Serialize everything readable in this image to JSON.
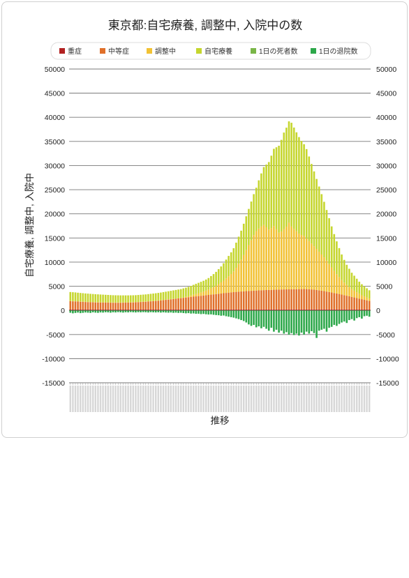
{
  "chart_data": {
    "type": "bar",
    "stacked": true,
    "title": "東京都:自宅療養, 調整中, 入院中の数",
    "xlabel": "推移",
    "ylabel": "自宅療養, 調整中, 入院中",
    "ylim": [
      -15000,
      50000
    ],
    "yticks": [
      50000,
      45000,
      40000,
      35000,
      30000,
      25000,
      20000,
      15000,
      10000,
      5000,
      0,
      -5000,
      -10000,
      -15000
    ],
    "grid": true,
    "legend_position": "top",
    "series": [
      {
        "name": "重症",
        "color": "#b22222",
        "values": [
          180,
          180,
          180,
          180,
          180,
          180,
          180,
          180,
          180,
          180,
          180,
          180,
          180,
          180,
          180,
          180,
          180,
          180,
          180,
          180,
          180,
          180,
          180,
          180,
          180,
          180,
          180,
          180,
          180,
          180,
          180,
          180,
          180,
          180,
          180,
          180,
          180,
          180,
          180,
          180,
          180,
          180,
          180,
          180,
          180,
          180,
          180,
          180,
          180,
          180,
          180,
          180,
          180,
          180,
          180,
          180,
          180,
          180,
          180,
          180,
          180,
          180,
          180,
          180,
          180,
          180,
          180,
          180,
          180,
          180,
          180,
          180,
          180,
          180,
          180,
          180,
          180,
          180,
          180,
          180,
          180,
          180,
          180,
          180,
          180,
          180,
          180,
          180,
          180,
          180,
          180,
          180,
          180,
          180,
          180,
          180,
          180,
          180,
          180,
          180,
          180,
          180,
          180,
          180,
          180,
          180,
          180,
          180,
          180,
          180,
          180,
          180,
          180,
          180,
          180,
          180,
          180,
          180,
          180,
          180
        ]
      },
      {
        "name": "中等症",
        "color": "#e0702a",
        "values": [
          1720,
          1700,
          1680,
          1650,
          1620,
          1590,
          1560,
          1540,
          1520,
          1500,
          1480,
          1470,
          1460,
          1450,
          1440,
          1430,
          1420,
          1410,
          1410,
          1410,
          1410,
          1420,
          1430,
          1440,
          1460,
          1480,
          1500,
          1530,
          1560,
          1590,
          1620,
          1660,
          1700,
          1740,
          1780,
          1830,
          1880,
          1940,
          2000,
          2060,
          2120,
          2180,
          2240,
          2300,
          2360,
          2420,
          2480,
          2540,
          2600,
          2660,
          2720,
          2780,
          2840,
          2900,
          2960,
          3020,
          3080,
          3140,
          3200,
          3260,
          3320,
          3380,
          3440,
          3500,
          3550,
          3600,
          3650,
          3690,
          3730,
          3770,
          3810,
          3840,
          3870,
          3900,
          3930,
          3960,
          3990,
          4010,
          4030,
          4050,
          4070,
          4090,
          4110,
          4130,
          4150,
          4160,
          4170,
          4180,
          4190,
          4200,
          4210,
          4220,
          4230,
          4240,
          4230,
          4200,
          4160,
          4110,
          4050,
          3980,
          3900,
          3810,
          3720,
          3620,
          3520,
          3420,
          3320,
          3220,
          3100,
          2980,
          2860,
          2740,
          2620,
          2500,
          2380,
          2260,
          2140,
          2020,
          1900,
          1780
        ]
      },
      {
        "name": "調整中",
        "color": "#f2c234",
        "values": [
          50,
          50,
          50,
          50,
          50,
          50,
          50,
          50,
          50,
          50,
          50,
          50,
          50,
          50,
          50,
          50,
          50,
          50,
          50,
          50,
          50,
          50,
          50,
          50,
          50,
          50,
          50,
          50,
          50,
          50,
          50,
          50,
          50,
          50,
          50,
          50,
          50,
          50,
          50,
          50,
          50,
          50,
          50,
          50,
          50,
          100,
          150,
          200,
          300,
          400,
          500,
          600,
          700,
          800,
          950,
          1100,
          1300,
          1500,
          1700,
          2000,
          2300,
          2600,
          3000,
          3400,
          3800,
          4300,
          5000,
          5800,
          6600,
          7500,
          8500,
          9500,
          10500,
          11500,
          12300,
          12800,
          13200,
          13500,
          13000,
          12500,
          12800,
          13200,
          12500,
          11800,
          12000,
          12500,
          13000,
          13800,
          13000,
          12500,
          12000,
          11500,
          11200,
          11000,
          10500,
          10000,
          9500,
          9000,
          8500,
          8000,
          7500,
          7000,
          6400,
          5800,
          5200,
          4600,
          4000,
          3500,
          3000,
          2600,
          2200,
          1900,
          1600,
          1400,
          1200,
          1000,
          800,
          700,
          600,
          500
        ]
      },
      {
        "name": "自宅療養",
        "color": "#c5d62e",
        "values": [
          1850,
          1830,
          1810,
          1780,
          1760,
          1740,
          1720,
          1700,
          1680,
          1660,
          1640,
          1620,
          1600,
          1580,
          1560,
          1540,
          1520,
          1500,
          1490,
          1480,
          1470,
          1460,
          1450,
          1440,
          1430,
          1420,
          1420,
          1430,
          1440,
          1450,
          1460,
          1480,
          1500,
          1520,
          1540,
          1560,
          1580,
          1610,
          1640,
          1670,
          1700,
          1730,
          1760,
          1790,
          1820,
          1860,
          1900,
          1950,
          2000,
          2050,
          2100,
          2150,
          2200,
          2250,
          2300,
          2400,
          2550,
          2700,
          2900,
          3100,
          3300,
          3600,
          3900,
          4200,
          4500,
          4800,
          5200,
          5600,
          6000,
          6500,
          7000,
          7500,
          8000,
          8500,
          9000,
          10000,
          11000,
          12000,
          13000,
          14000,
          15000,
          16000,
          17000,
          18000,
          19000,
          20000,
          20500,
          21000,
          21500,
          21000,
          20500,
          20000,
          19500,
          19000,
          18500,
          17500,
          16500,
          15500,
          14500,
          13500,
          12500,
          11500,
          10500,
          9500,
          8500,
          7600,
          6800,
          6000,
          5300,
          4700,
          4200,
          3800,
          3400,
          3100,
          2800,
          2500,
          2300,
          2100,
          1900,
          1700
        ]
      },
      {
        "name": "1日の死者数",
        "color": "#7ab648",
        "values": [
          -10,
          -10,
          -10,
          -10,
          -10,
          -10,
          -10,
          -10,
          -10,
          -10,
          -10,
          -10,
          -10,
          -10,
          -10,
          -10,
          -10,
          -10,
          -10,
          -10,
          -10,
          -10,
          -10,
          -10,
          -10,
          -10,
          -10,
          -10,
          -10,
          -10,
          -10,
          -10,
          -10,
          -10,
          -10,
          -10,
          -10,
          -10,
          -10,
          -10,
          -10,
          -10,
          -10,
          -10,
          -10,
          -10,
          -10,
          -10,
          -10,
          -10,
          -10,
          -10,
          -10,
          -10,
          -10,
          -10,
          -10,
          -10,
          -10,
          -10,
          -10,
          -10,
          -10,
          -10,
          -10,
          -10,
          -10,
          -10,
          -10,
          -10,
          -10,
          -10,
          -10,
          -10,
          -10,
          -10,
          -10,
          -10,
          -10,
          -10,
          -10,
          -10,
          -10,
          -10,
          -10,
          -10,
          -10,
          -10,
          -10,
          -10,
          -10,
          -10,
          -10,
          -10,
          -10,
          -10,
          -10,
          -10,
          -10,
          -10,
          -10,
          -10,
          -10,
          -10,
          -10,
          -10,
          -10,
          -10,
          -10,
          -10,
          -10,
          -10,
          -10,
          -10,
          -10,
          -10,
          -10,
          -10,
          -10,
          -10
        ]
      },
      {
        "name": "1日の退院数",
        "color": "#2da84a",
        "values": [
          -480,
          -600,
          -520,
          -450,
          -560,
          -500,
          -430,
          -470,
          -520,
          -400,
          -460,
          -500,
          -420,
          -450,
          -380,
          -410,
          -470,
          -390,
          -420,
          -360,
          -400,
          -450,
          -380,
          -410,
          -350,
          -390,
          -420,
          -370,
          -400,
          -360,
          -380,
          -430,
          -370,
          -400,
          -420,
          -390,
          -450,
          -400,
          -440,
          -470,
          -430,
          -500,
          -460,
          -520,
          -480,
          -550,
          -600,
          -560,
          -650,
          -620,
          -700,
          -680,
          -760,
          -720,
          -800,
          -850,
          -820,
          -900,
          -960,
          -1000,
          -1100,
          -1050,
          -1200,
          -1300,
          -1400,
          -1500,
          -1650,
          -1800,
          -2000,
          -2200,
          -2500,
          -2900,
          -3200,
          -3000,
          -3500,
          -3300,
          -3700,
          -3400,
          -3800,
          -4200,
          -3600,
          -4400,
          -4000,
          -4600,
          -4200,
          -4800,
          -4500,
          -5000,
          -4700,
          -5100,
          -4800,
          -5200,
          -4600,
          -5000,
          -4400,
          -4800,
          -4300,
          -4700,
          -5700,
          -4200,
          -4000,
          -3800,
          -4400,
          -3600,
          -3400,
          -3000,
          -3200,
          -2800,
          -2500,
          -2300,
          -2600,
          -2000,
          -1800,
          -2100,
          -1600,
          -1400,
          -1700,
          -1200,
          -1100,
          -1300
        ]
      }
    ]
  }
}
